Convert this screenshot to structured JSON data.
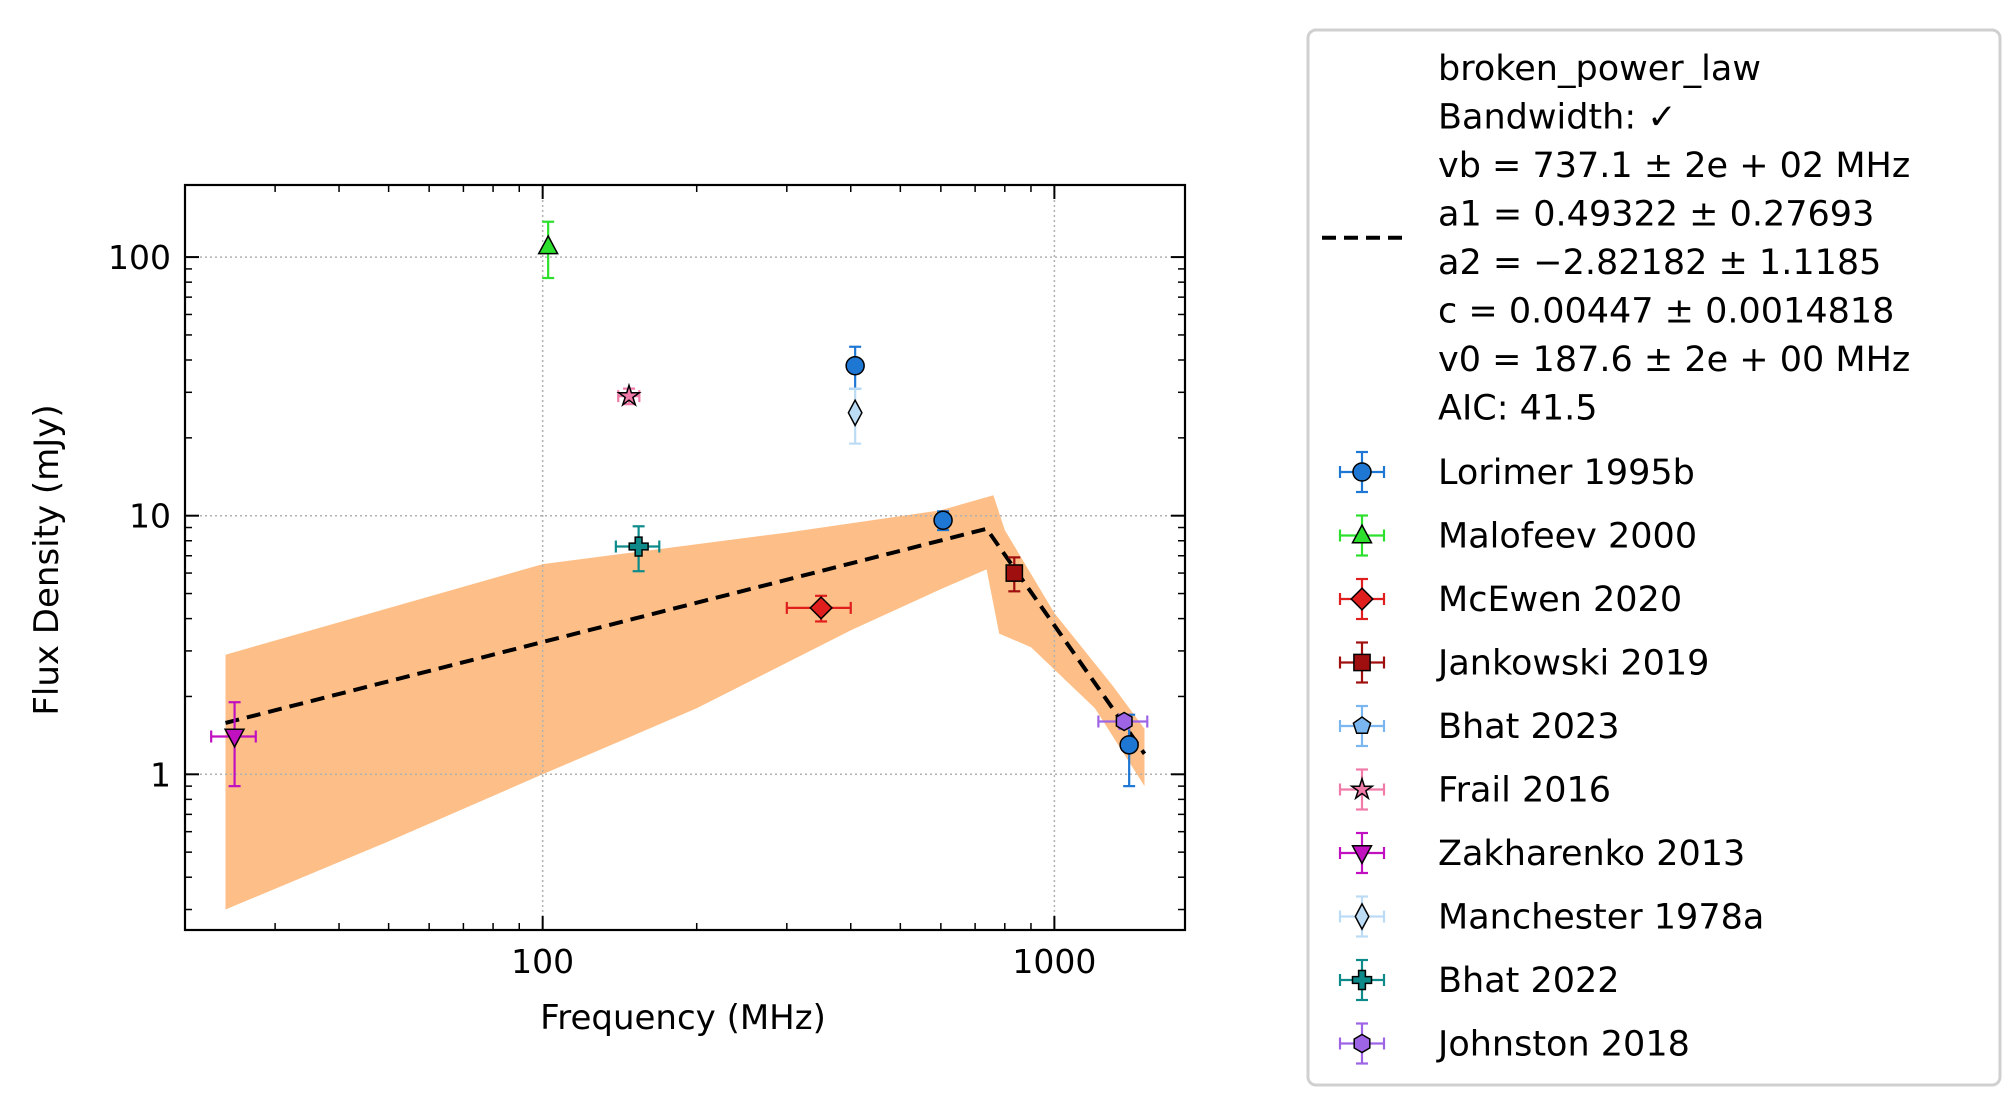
{
  "chart_data": {
    "type": "scatter",
    "xlabel": "Frequency (MHz)",
    "ylabel": "Flux Density (mJy)",
    "xscale": "log",
    "yscale": "log",
    "xlim": [
      20,
      1800
    ],
    "ylim": [
      0.25,
      190
    ],
    "grid": true,
    "legend_position": "outside-right",
    "x_ticks": [
      {
        "value": 100,
        "label": "100"
      },
      {
        "value": 1000,
        "label": "1000"
      }
    ],
    "y_ticks": [
      {
        "value": 1,
        "label": "1"
      },
      {
        "value": 10,
        "label": "10"
      },
      {
        "value": 100,
        "label": "100"
      }
    ],
    "fit": {
      "model": "broken_power_law",
      "legend_lines": [
        "broken_power_law",
        "Bandwidth: ✓",
        "vb = 737.1 ± 2e + 02 MHz",
        "a1 = 0.49322 ± 0.27693",
        "a2 = −2.82182 ± 1.1185",
        "c = 0.00447 ± 0.0014818",
        "v0 = 187.6 ± 2e + 00 MHz",
        "AIC: 41.5"
      ],
      "line_color": "#000000",
      "band_color": "#fdbf87",
      "curve": [
        [
          24,
          1.58
        ],
        [
          737.1,
          8.9
        ],
        [
          1500,
          1.2
        ]
      ],
      "band_upper": [
        [
          24,
          2.9
        ],
        [
          100,
          6.5
        ],
        [
          300,
          8.6
        ],
        [
          600,
          10.5
        ],
        [
          760,
          12.0
        ],
        [
          800,
          8.8
        ],
        [
          1000,
          4.2
        ],
        [
          1300,
          2.2
        ],
        [
          1500,
          1.5
        ]
      ],
      "band_lower": [
        [
          24,
          0.3
        ],
        [
          50,
          0.55
        ],
        [
          100,
          1.0
        ],
        [
          200,
          1.8
        ],
        [
          400,
          3.6
        ],
        [
          600,
          5.2
        ],
        [
          737,
          6.2
        ],
        [
          780,
          3.5
        ],
        [
          900,
          3.1
        ],
        [
          1200,
          1.8
        ],
        [
          1500,
          0.9
        ]
      ]
    },
    "series": [
      {
        "name": "Lorimer 1995b",
        "marker": "circle",
        "color": "#1f77d4",
        "points": [
          {
            "x": 408,
            "y": 38,
            "yerr": [
              7,
              7
            ]
          },
          {
            "x": 606,
            "y": 9.6,
            "yerr": [
              0.8,
              0.8
            ]
          },
          {
            "x": 1400,
            "y": 1.3,
            "yerr": [
              0.4,
              0.4
            ]
          }
        ]
      },
      {
        "name": "Malofeev 2000",
        "marker": "triangle-up",
        "color": "#2de02d",
        "points": [
          {
            "x": 102.5,
            "y": 110,
            "yerr": [
              27,
              27
            ]
          }
        ]
      },
      {
        "name": "McEwen 2020",
        "marker": "diamond",
        "color": "#e01e1e",
        "points": [
          {
            "x": 350,
            "y": 4.4,
            "yerr": [
              0.5,
              0.5
            ],
            "xerr": [
              50,
              50
            ]
          }
        ]
      },
      {
        "name": "Jankowski 2019",
        "marker": "square",
        "color": "#a00f0f",
        "points": [
          {
            "x": 835,
            "y": 6.0,
            "yerr": [
              0.9,
              0.9
            ]
          }
        ]
      },
      {
        "name": "Bhat 2023",
        "marker": "pentagon",
        "color": "#7ab6ef",
        "points": []
      },
      {
        "name": "Frail 2016",
        "marker": "star",
        "color": "#f07aa8",
        "points": [
          {
            "x": 147.5,
            "y": 29,
            "yerr": [
              2,
              2
            ],
            "xerr": [
              7,
              7
            ]
          }
        ]
      },
      {
        "name": "Zakharenko 2013",
        "marker": "triangle-down",
        "color": "#c010c0",
        "points": [
          {
            "x": 25,
            "y": 1.4,
            "yerr": [
              0.5,
              0.5
            ],
            "xerr": [
              2.5,
              2.5
            ]
          }
        ]
      },
      {
        "name": "Manchester 1978a",
        "marker": "thin-diamond",
        "color": "#bcdcf6",
        "points": [
          {
            "x": 408,
            "y": 25,
            "yerr": [
              6,
              6
            ]
          }
        ]
      },
      {
        "name": "Bhat 2022",
        "marker": "plus",
        "color": "#0f8a8a",
        "points": [
          {
            "x": 154,
            "y": 7.6,
            "yerr": [
              1.5,
              1.5
            ],
            "xerr": [
              15,
              15
            ]
          }
        ]
      },
      {
        "name": "Johnston 2018",
        "marker": "hexagon",
        "color": "#9d64e6",
        "points": [
          {
            "x": 1369,
            "y": 1.6,
            "yerr": [
              0.1,
              0.1
            ],
            "xerr": [
              150,
              150
            ]
          }
        ]
      }
    ]
  }
}
